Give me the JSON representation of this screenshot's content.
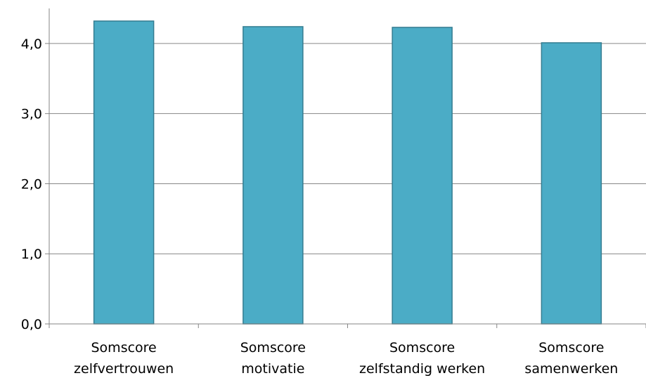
{
  "chart_data": {
    "type": "bar",
    "categories": [
      [
        "Somscore",
        "zelfvertrouwen"
      ],
      [
        "Somscore",
        "motivatie"
      ],
      [
        "Somscore",
        "zelfstandig werken"
      ],
      [
        "Somscore",
        "samenwerken"
      ]
    ],
    "values": [
      4.32,
      4.24,
      4.23,
      4.01
    ],
    "ylim": [
      0,
      4.5
    ],
    "yticks": [
      0,
      1,
      2,
      3,
      4
    ],
    "ytick_labels": [
      "0,0",
      "1,0",
      "2,0",
      "3,0",
      "4,0"
    ],
    "grid": true,
    "legend": "none",
    "colors": {
      "bar_fill": "#4bacc6",
      "bar_stroke": "#357d91",
      "grid": "#868686",
      "axis": "#868686"
    }
  }
}
